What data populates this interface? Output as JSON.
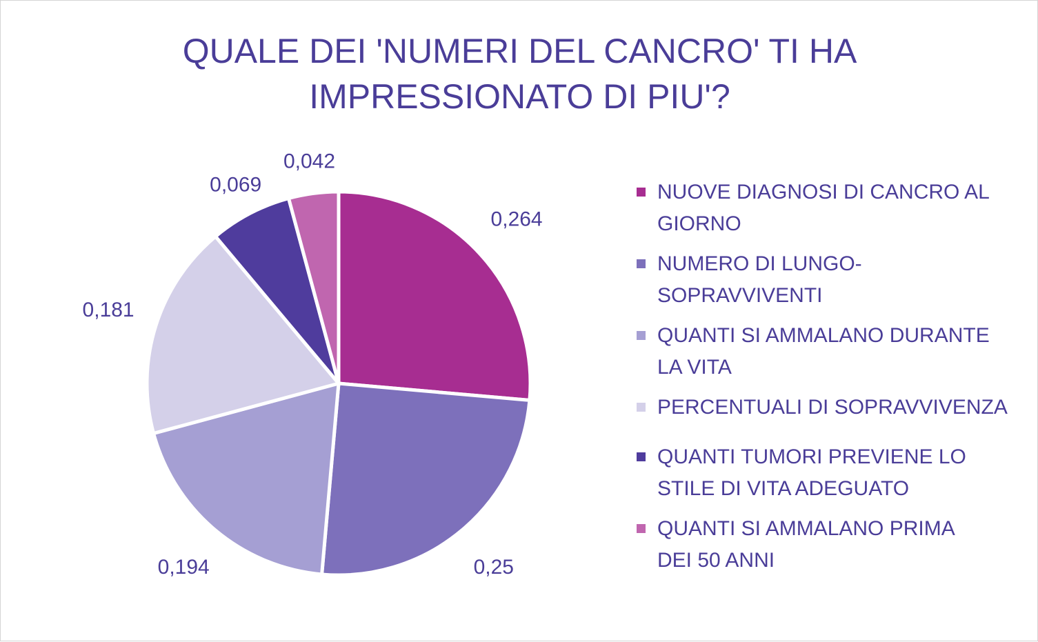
{
  "chart_data": {
    "type": "pie",
    "title": "QUALE DEI 'NUMERI DEL CANCRO' TI HA\nIMPRESSIONATO DI PIU'?",
    "categories": [
      "NUOVE DIAGNOSI DI CANCRO AL GIORNO",
      "NUMERO DI LUNGO-SOPRAVVIVENTI",
      "QUANTI SI AMMALANO DURANTE LA VITA",
      "PERCENTUALI DI SOPRAVVIVENZA",
      "QUANTI TUMORI PREVIENE LO STILE DI VITA ADEGUATO",
      "QUANTI SI AMMALANO PRIMA DEI 50 ANNI"
    ],
    "values": [
      0.264,
      0.25,
      0.194,
      0.181,
      0.069,
      0.042
    ],
    "data_labels": [
      "0,264",
      "0,25",
      "0,194",
      "0,181",
      "0,069",
      "0,042"
    ],
    "colors": [
      "#a72d91",
      "#7d70bb",
      "#a59fd3",
      "#d4d0e9",
      "#4f3c9d",
      "#c066af"
    ],
    "legend_position": "right"
  },
  "legend": {
    "items": [
      {
        "line1": "NUOVE DIAGNOSI DI CANCRO AL",
        "line2": "GIORNO",
        "color": "#a72d91"
      },
      {
        "line1": "NUMERO DI LUNGO-",
        "line2": "SOPRAVVIVENTI",
        "color": "#7d70bb"
      },
      {
        "line1": "QUANTI SI AMMALANO DURANTE",
        "line2": "LA VITA",
        "color": "#a59fd3"
      },
      {
        "line1": "PERCENTUALI DI SOPRAVVIVENZA",
        "line2": "",
        "color": "#d4d0e9"
      },
      {
        "line1": "QUANTI TUMORI PREVIENE LO",
        "line2": "STILE DI VITA ADEGUATO",
        "color": "#4f3c9d"
      },
      {
        "line1": "QUANTI SI AMMALANO PRIMA",
        "line2": "DEI 50 ANNI",
        "color": "#c066af"
      }
    ]
  }
}
